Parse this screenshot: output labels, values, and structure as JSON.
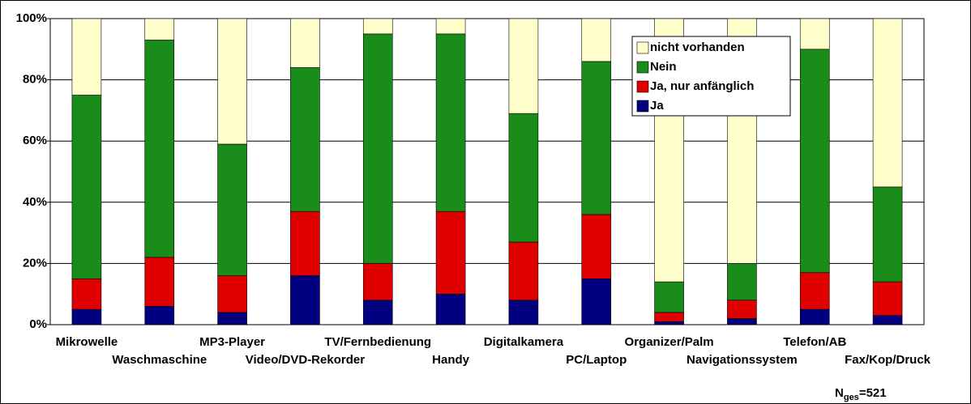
{
  "chart_data": {
    "type": "stacked_bar",
    "categories": [
      "Mikrowelle",
      "Waschmaschine",
      "MP3-Player",
      "Video/DVD-Rekorder",
      "TV/Fernbedienung",
      "Handy",
      "Digitalkamera",
      "PC/Laptop",
      "Organizer/Palm",
      "Navigationssystem",
      "Telefon/AB",
      "Fax/Kop/Druck"
    ],
    "series": [
      {
        "name": "nicht vorhanden",
        "color": "#ffffcc",
        "values": [
          25,
          7,
          41,
          16,
          5,
          5,
          31,
          14,
          86,
          80,
          10,
          55
        ]
      },
      {
        "name": "Nein",
        "color": "#1a8c1a",
        "values": [
          60,
          71,
          43,
          47,
          75,
          58,
          42,
          50,
          10,
          12,
          73,
          31
        ]
      },
      {
        "name": "Ja, nur anfänglich",
        "color": "#e00000",
        "values": [
          10,
          16,
          12,
          21,
          12,
          27,
          19,
          21,
          3,
          6,
          12,
          11
        ]
      },
      {
        "name": "Ja",
        "color": "#000080",
        "values": [
          5,
          6,
          4,
          16,
          8,
          10,
          8,
          15,
          1,
          2,
          5,
          3
        ]
      }
    ],
    "ylim": [
      0,
      100
    ],
    "yticks": [
      {
        "value": 0,
        "label": "0%"
      },
      {
        "value": 20,
        "label": "20%"
      },
      {
        "value": 40,
        "label": "40%"
      },
      {
        "value": 60,
        "label": "60%"
      },
      {
        "value": 80,
        "label": "80%"
      },
      {
        "value": 100,
        "label": "100%"
      }
    ],
    "grid": true,
    "legend": "top-right",
    "annotation": {
      "main": "N",
      "sub": "ges",
      "rest": "=521"
    }
  }
}
